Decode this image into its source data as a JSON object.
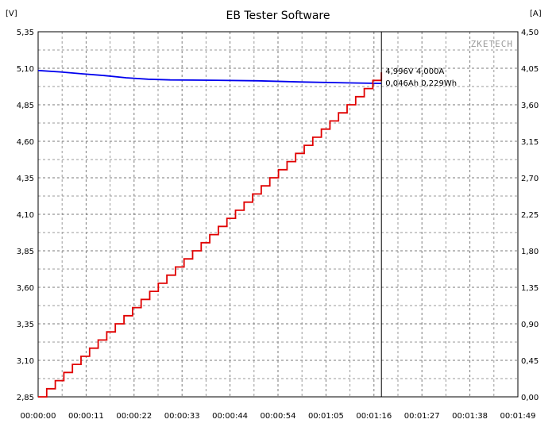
{
  "window": {
    "title": "EB Tester Software"
  },
  "chart_data": {
    "type": "line",
    "title": "EB Tester Software",
    "brand": "ZKETECH",
    "y_left_unit": "[V]",
    "y_right_unit": "[A]",
    "y_left_ticks": [
      "5,35",
      "5,10",
      "4,85",
      "4,60",
      "4,35",
      "4,10",
      "3,85",
      "3,60",
      "3,35",
      "3,10",
      "2,85"
    ],
    "y_right_ticks": [
      "4,50",
      "4,05",
      "3,60",
      "3,15",
      "2,70",
      "2,25",
      "1,80",
      "1,35",
      "0,90",
      "0,45",
      "0,00"
    ],
    "x_ticks": [
      "00:00:00",
      "00:00:11",
      "00:00:22",
      "00:00:33",
      "00:00:44",
      "00:00:54",
      "00:01:05",
      "00:01:16",
      "00:01:27",
      "00:01:38",
      "00:01:49"
    ],
    "ylim_left": [
      2.85,
      5.35
    ],
    "ylim_right": [
      0.0,
      4.5
    ],
    "xlim_s": [
      0,
      109
    ],
    "grid": true,
    "series": [
      {
        "axis": "left",
        "color": "#0000ee",
        "points": [
          [
            0,
            5.085
          ],
          [
            5,
            5.075
          ],
          [
            10,
            5.062
          ],
          [
            15,
            5.05
          ],
          [
            20,
            5.035
          ],
          [
            25,
            5.025
          ],
          [
            30,
            5.02
          ],
          [
            40,
            5.018
          ],
          [
            50,
            5.014
          ],
          [
            60,
            5.006
          ],
          [
            70,
            5.0
          ],
          [
            78,
            4.996
          ]
        ]
      },
      {
        "axis": "right",
        "color": "#e00000",
        "step": true,
        "step_s": 1.95,
        "step_a": 0.1,
        "start_a": 0.0,
        "end_s": 78,
        "end_a": 4.0
      }
    ],
    "cursor": {
      "x_s": 78,
      "readout": [
        "4,996V   4,000A",
        "0,046Ah 0,229Wh"
      ]
    }
  }
}
